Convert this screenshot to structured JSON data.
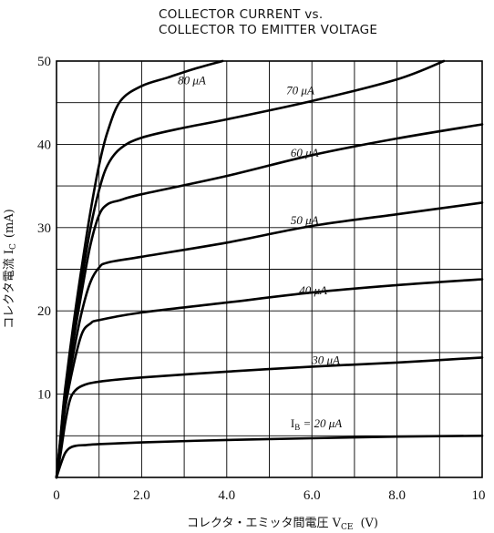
{
  "chart_data": {
    "type": "line",
    "title": "COLLECTOR CURRENT vs.",
    "subtitle": "COLLECTOR TO EMITTER VOLTAGE",
    "xlabel": "コレクタ・エミッタ間電圧 V",
    "xlabel_sub": "CE",
    "xlabel_unit": "(V)",
    "ylabel": "コレクタ電流 I",
    "ylabel_sub": "C",
    "ylabel_unit": "(mA)",
    "xlim": [
      0,
      10
    ],
    "ylim": [
      0,
      50
    ],
    "x_ticks": [
      "0",
      "2.0",
      "4.0",
      "6.0",
      "8.0",
      "10"
    ],
    "y_ticks": [
      "0",
      "10",
      "20",
      "30",
      "40",
      "50"
    ],
    "grid": true,
    "series": [
      {
        "name": "I_B = 20 μA",
        "label_main": "I",
        "label_sub": "B",
        "label_rest": " = 20 μA",
        "label_at": [
          5.5,
          6.0
        ],
        "points": [
          [
            0,
            0
          ],
          [
            0.1,
            1.6
          ],
          [
            0.2,
            2.9
          ],
          [
            0.3,
            3.5
          ],
          [
            0.45,
            3.8
          ],
          [
            0.7,
            3.9
          ],
          [
            1.0,
            4.0
          ],
          [
            2.0,
            4.2
          ],
          [
            4.0,
            4.5
          ],
          [
            6.0,
            4.7
          ],
          [
            8.0,
            4.9
          ],
          [
            10,
            5.0
          ]
        ]
      },
      {
        "name": "30 μA",
        "label_main": "30 μA",
        "label_at": [
          6.0,
          13.6
        ],
        "points": [
          [
            0,
            0
          ],
          [
            0.1,
            3.0
          ],
          [
            0.2,
            6.4
          ],
          [
            0.3,
            9.0
          ],
          [
            0.4,
            10.2
          ],
          [
            0.6,
            11.0
          ],
          [
            1.0,
            11.5
          ],
          [
            2.0,
            12.0
          ],
          [
            4.0,
            12.7
          ],
          [
            6.0,
            13.3
          ],
          [
            8.0,
            13.8
          ],
          [
            10,
            14.4
          ]
        ]
      },
      {
        "name": "40 μA",
        "label_main": "40 μA",
        "label_at": [
          5.7,
          22.0
        ],
        "points": [
          [
            0,
            0
          ],
          [
            0.1,
            3.8
          ],
          [
            0.2,
            8.2
          ],
          [
            0.4,
            13.5
          ],
          [
            0.6,
            17.3
          ],
          [
            0.8,
            18.5
          ],
          [
            1.0,
            18.9
          ],
          [
            2.0,
            19.8
          ],
          [
            4.0,
            21.0
          ],
          [
            6.0,
            22.2
          ],
          [
            8.0,
            23.1
          ],
          [
            10,
            23.8
          ]
        ]
      },
      {
        "name": "50 μA",
        "label_main": "50 μA",
        "label_at": [
          5.5,
          30.4
        ],
        "points": [
          [
            0,
            0
          ],
          [
            0.1,
            4.4
          ],
          [
            0.2,
            9.0
          ],
          [
            0.4,
            15.0
          ],
          [
            0.6,
            20.0
          ],
          [
            0.8,
            23.5
          ],
          [
            1.0,
            25.2
          ],
          [
            1.2,
            25.8
          ],
          [
            2.0,
            26.5
          ],
          [
            4.0,
            28.2
          ],
          [
            6.0,
            30.2
          ],
          [
            8.0,
            31.6
          ],
          [
            10,
            33.0
          ]
        ]
      },
      {
        "name": "60 μA",
        "label_main": "60 μA",
        "label_at": [
          5.5,
          38.5
        ],
        "points": [
          [
            0,
            0
          ],
          [
            0.1,
            4.8
          ],
          [
            0.2,
            9.8
          ],
          [
            0.4,
            16.5
          ],
          [
            0.6,
            22.5
          ],
          [
            0.8,
            28.0
          ],
          [
            1.0,
            31.5
          ],
          [
            1.2,
            32.8
          ],
          [
            1.5,
            33.3
          ],
          [
            2.0,
            34.0
          ],
          [
            4.0,
            36.2
          ],
          [
            6.0,
            38.7
          ],
          [
            8.0,
            40.7
          ],
          [
            10,
            42.4
          ]
        ]
      },
      {
        "name": "70 μA",
        "label_main": "70 μA",
        "label_at": [
          5.4,
          46.0
        ],
        "points": [
          [
            0,
            0
          ],
          [
            0.1,
            5.0
          ],
          [
            0.2,
            10.2
          ],
          [
            0.4,
            17.5
          ],
          [
            0.6,
            24.0
          ],
          [
            0.8,
            30.0
          ],
          [
            1.0,
            34.5
          ],
          [
            1.2,
            37.5
          ],
          [
            1.5,
            39.5
          ],
          [
            2.0,
            40.8
          ],
          [
            3.0,
            42.0
          ],
          [
            4.0,
            43.0
          ],
          [
            6.0,
            45.2
          ],
          [
            8.0,
            47.8
          ],
          [
            9.1,
            50
          ]
        ]
      },
      {
        "name": "80 μA",
        "label_main": "80 μA",
        "label_at": [
          2.85,
          47.2
        ],
        "points": [
          [
            0,
            0
          ],
          [
            0.1,
            5.2
          ],
          [
            0.2,
            10.5
          ],
          [
            0.4,
            18.5
          ],
          [
            0.6,
            25.5
          ],
          [
            0.8,
            32.0
          ],
          [
            1.0,
            37.5
          ],
          [
            1.2,
            41.5
          ],
          [
            1.5,
            45.2
          ],
          [
            2.0,
            47.0
          ],
          [
            2.6,
            48.0
          ],
          [
            3.2,
            49.0
          ],
          [
            3.9,
            50
          ]
        ]
      }
    ]
  }
}
